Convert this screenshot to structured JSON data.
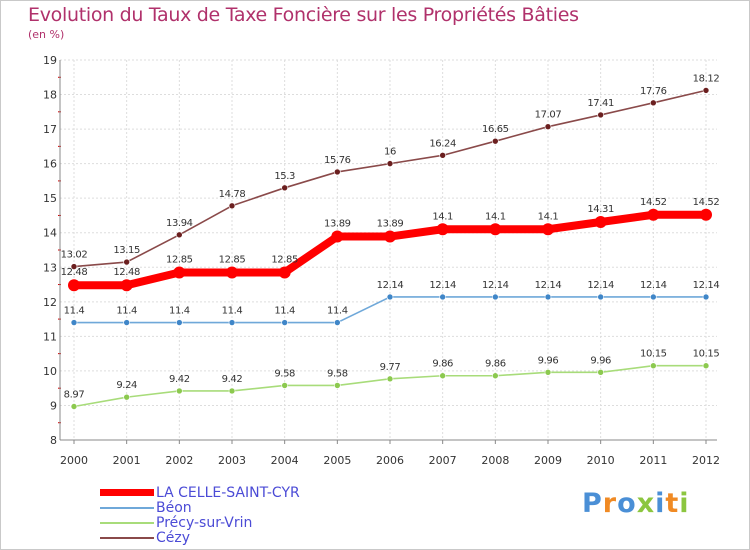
{
  "header": {
    "title": "Evolution du Taux de Taxe Foncière sur les Propriétés Bâties",
    "subtitle": "(en %)"
  },
  "logo": {
    "text": "Proxiti",
    "letter_colors": [
      "#4a8fd6",
      "#f08a24",
      "#4a8fd6",
      "#8cc63f",
      "#4a8fd6",
      "#f08a24",
      "#8cc63f"
    ]
  },
  "chart_data": {
    "type": "line",
    "title": "Evolution du Taux de Taxe Foncière sur les Propriétés Bâties",
    "ylabel": "(en %)",
    "xlabel": "",
    "ylim": [
      8,
      19
    ],
    "yticks": [
      "8",
      "9",
      "10",
      "11",
      "12",
      "13",
      "14",
      "15",
      "16",
      "17",
      "18",
      "19"
    ],
    "categories": [
      "2000",
      "2001",
      "2002",
      "2003",
      "2004",
      "2005",
      "2006",
      "2007",
      "2008",
      "2009",
      "2010",
      "2011",
      "2012"
    ],
    "series": [
      {
        "name": "LA CELLE-SAINT-CYR",
        "color": "#ff0000",
        "emphasis": true,
        "values": [
          12.48,
          12.48,
          12.85,
          12.85,
          12.85,
          13.89,
          13.89,
          14.1,
          14.1,
          14.1,
          14.31,
          14.52,
          14.52
        ],
        "labels": [
          "12.48",
          "12.48",
          "12.85",
          "12.85",
          "12.85",
          "13.89",
          "13.89",
          "14.1",
          "14.1",
          "14.1",
          "14.31",
          "14.52",
          "14.52"
        ]
      },
      {
        "name": "Béon",
        "color": "#6fa8d9",
        "marker": "#3f86c8",
        "emphasis": false,
        "values": [
          11.4,
          11.4,
          11.4,
          11.4,
          11.4,
          11.4,
          12.14,
          12.14,
          12.14,
          12.14,
          12.14,
          12.14,
          12.14
        ],
        "labels": [
          "11.4",
          "11.4",
          "11.4",
          "11.4",
          "11.4",
          "11.4",
          "12.14",
          "12.14",
          "12.14",
          "12.14",
          "12.14",
          "12.14",
          "12.14"
        ]
      },
      {
        "name": "Précy-sur-Vrin",
        "color": "#a8dc7a",
        "marker": "#8cc94f",
        "emphasis": false,
        "values": [
          8.97,
          9.24,
          9.42,
          9.42,
          9.58,
          9.58,
          9.77,
          9.86,
          9.86,
          9.96,
          9.96,
          10.15,
          10.15
        ],
        "labels": [
          "8.97",
          "9.24",
          "9.42",
          "9.42",
          "9.58",
          "9.58",
          "9.77",
          "9.86",
          "9.86",
          "9.96",
          "9.96",
          "10.15",
          "10.15"
        ]
      },
      {
        "name": "Cézy",
        "color": "#8a4a4a",
        "marker": "#6b1f1f",
        "emphasis": false,
        "values": [
          13.02,
          13.15,
          13.94,
          14.78,
          15.3,
          15.76,
          16,
          16.24,
          16.65,
          17.07,
          17.41,
          17.76,
          18.12
        ],
        "labels": [
          "13.02",
          "13.15",
          "13.94",
          "14.78",
          "15.3",
          "15.76",
          "16",
          "16.24",
          "16.65",
          "17.07",
          "17.41",
          "17.76",
          "18.12"
        ]
      }
    ],
    "legend": "bottom-left",
    "grid": true
  }
}
